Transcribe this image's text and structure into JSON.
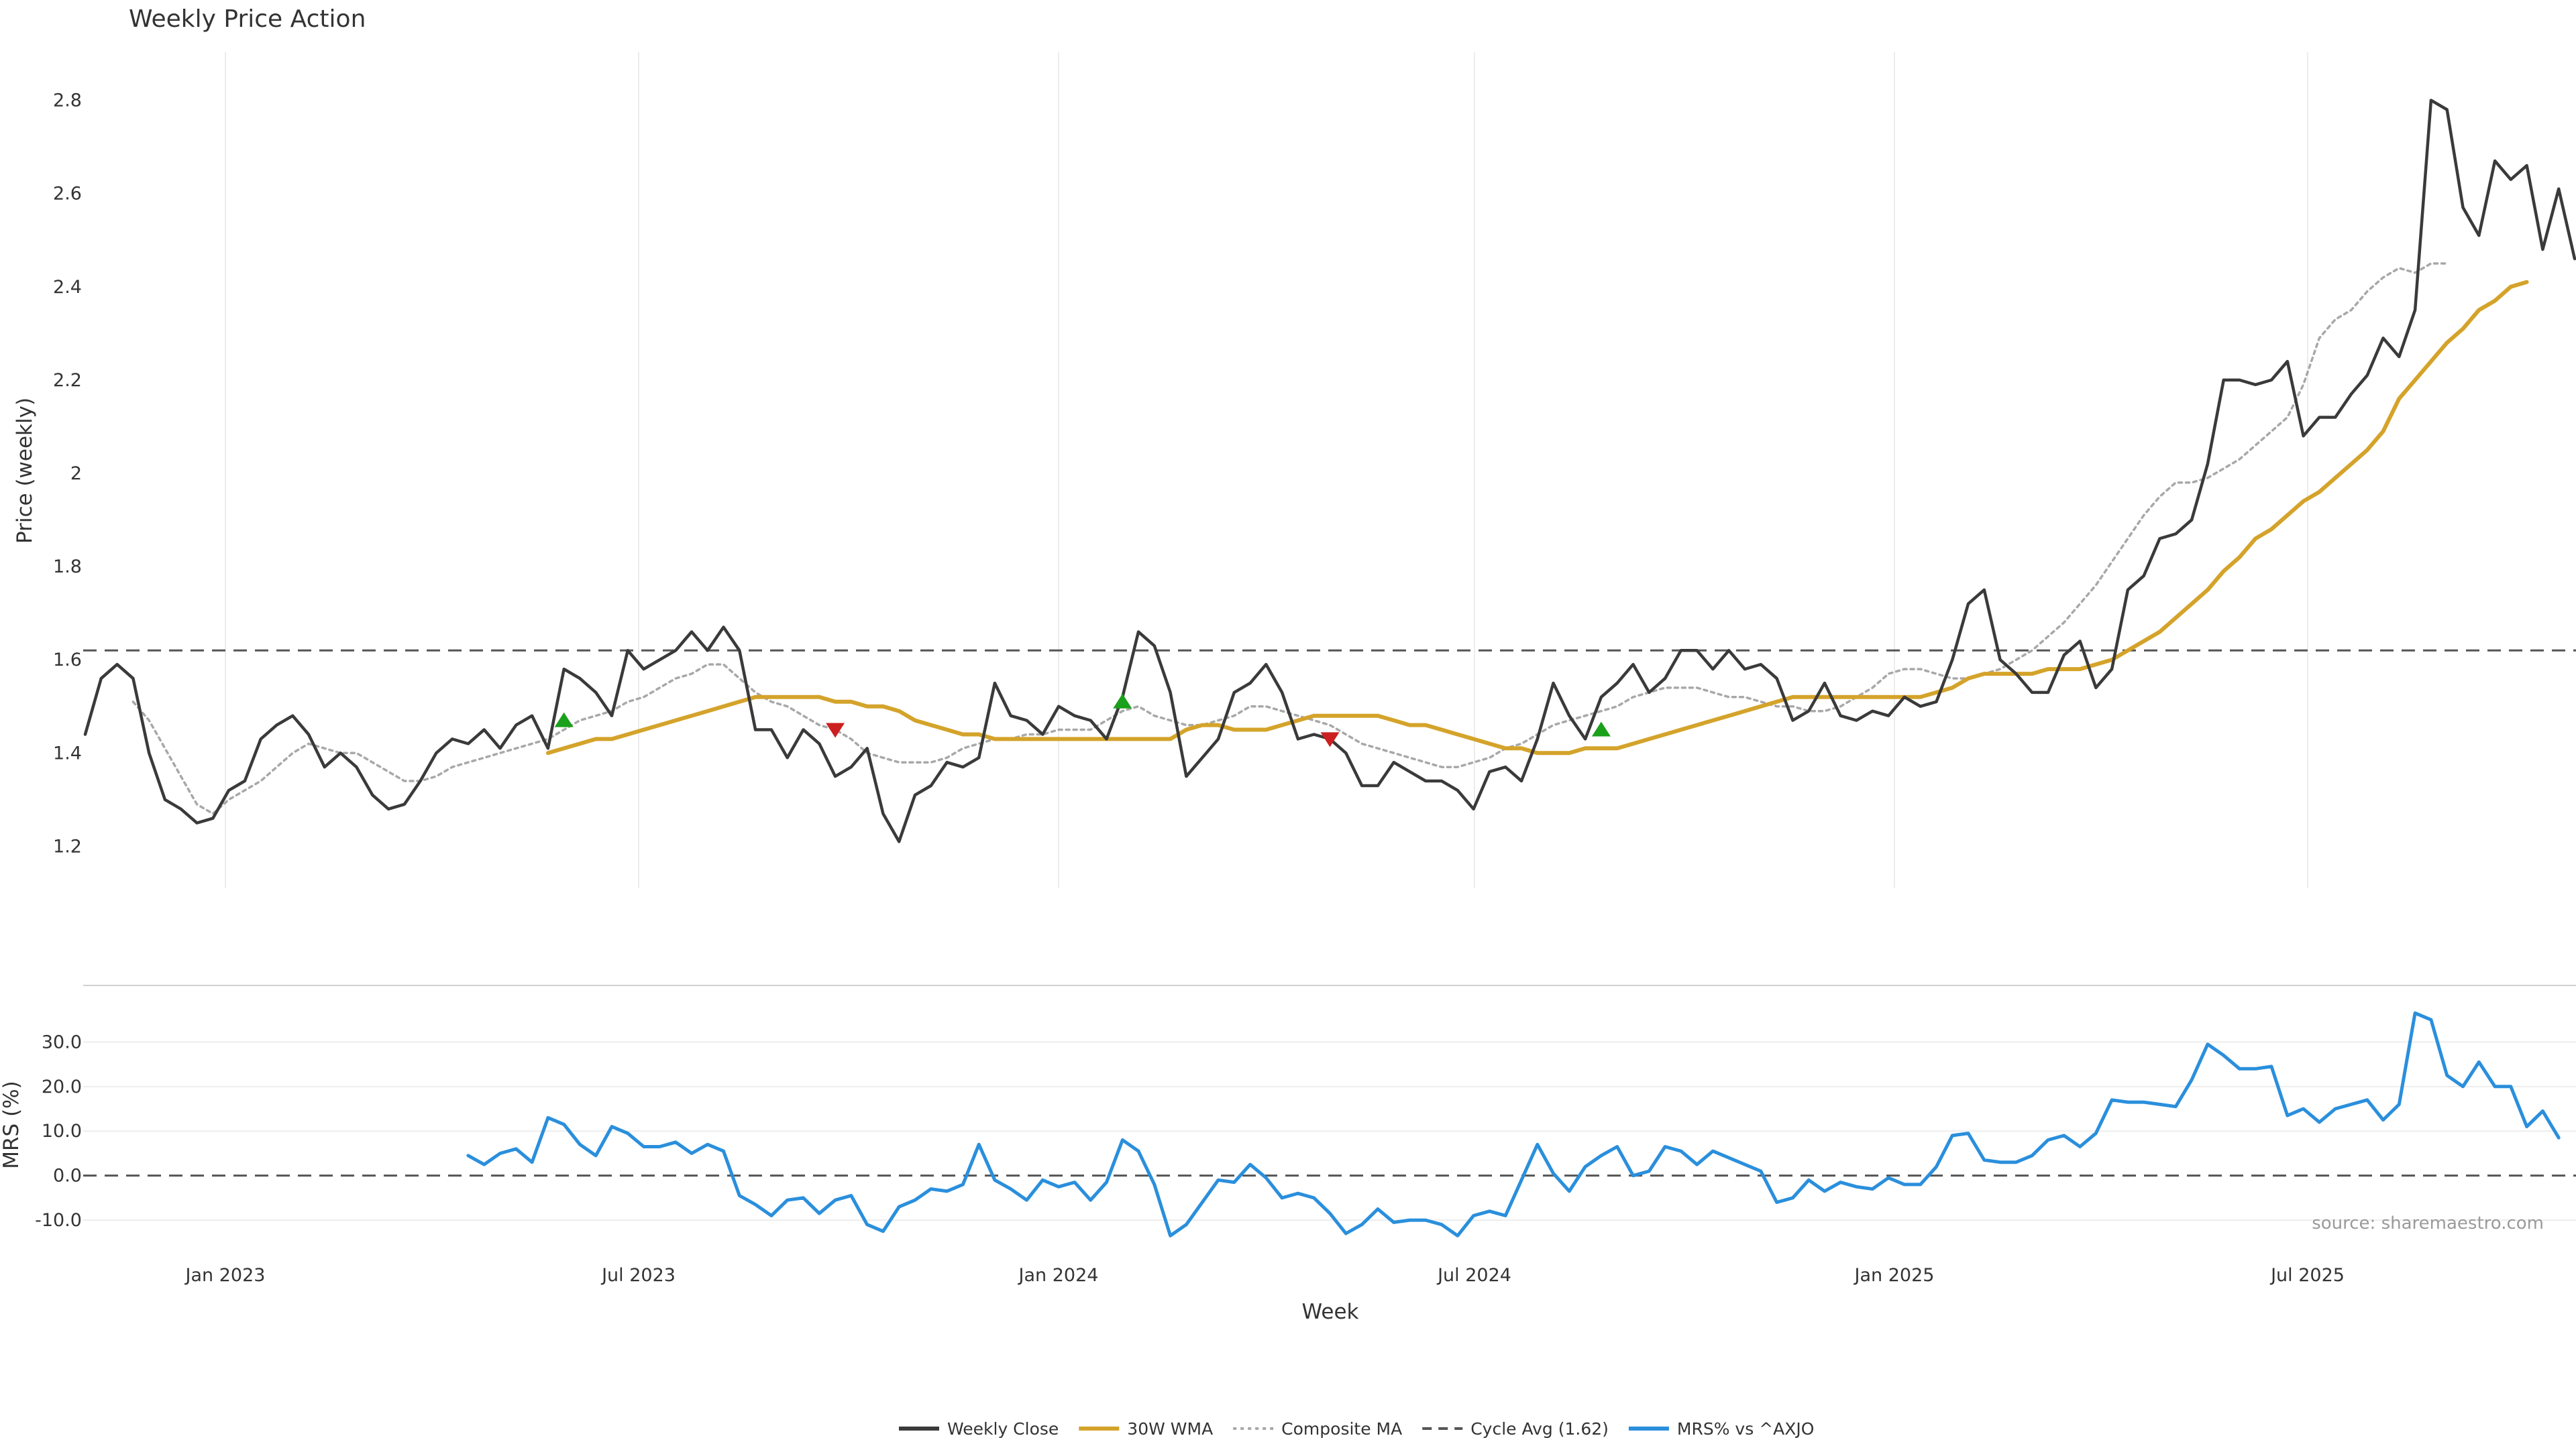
{
  "chart_data": [
    {
      "type": "line",
      "title": "Weekly Price Action",
      "ylabel": "Price (weekly)",
      "ylim": [
        1.11,
        2.9
      ],
      "yticks": [
        "1.2",
        "1.4",
        "1.6",
        "1.8",
        "2",
        "2.2",
        "2.4",
        "2.6",
        "2.8"
      ],
      "grid": "vertical",
      "reference_line": {
        "name": "Cycle Avg (1.62)",
        "value": 1.62,
        "style": "dashed"
      },
      "series": [
        {
          "name": "Weekly Close",
          "color": "#3a3a3a",
          "style": "solid",
          "values": [
            1.44,
            1.56,
            1.59,
            1.56,
            1.4,
            1.3,
            1.28,
            1.25,
            1.26,
            1.32,
            1.34,
            1.43,
            1.46,
            1.48,
            1.44,
            1.37,
            1.4,
            1.37,
            1.31,
            1.28,
            1.29,
            1.34,
            1.4,
            1.43,
            1.42,
            1.45,
            1.41,
            1.46,
            1.48,
            1.41,
            1.58,
            1.56,
            1.53,
            1.48,
            1.62,
            1.58,
            1.6,
            1.62,
            1.66,
            1.62,
            1.67,
            1.62,
            1.45,
            1.45,
            1.39,
            1.45,
            1.42,
            1.35,
            1.37,
            1.41,
            1.27,
            1.21,
            1.31,
            1.33,
            1.38,
            1.37,
            1.39,
            1.55,
            1.48,
            1.47,
            1.44,
            1.5,
            1.48,
            1.47,
            1.43,
            1.52,
            1.66,
            1.63,
            1.53,
            1.35,
            1.39,
            1.43,
            1.53,
            1.55,
            1.59,
            1.53,
            1.43,
            1.44,
            1.43,
            1.4,
            1.33,
            1.33,
            1.38,
            1.36,
            1.34,
            1.34,
            1.32,
            1.28,
            1.36,
            1.37,
            1.34,
            1.43,
            1.55,
            1.48,
            1.43,
            1.52,
            1.55,
            1.59,
            1.53,
            1.56,
            1.62,
            1.62,
            1.58,
            1.62,
            1.58,
            1.59,
            1.56,
            1.47,
            1.49,
            1.55,
            1.48,
            1.47,
            1.49,
            1.48,
            1.52,
            1.5,
            1.51,
            1.6,
            1.72,
            1.75,
            1.6,
            1.57,
            1.53,
            1.53,
            1.61,
            1.64,
            1.54,
            1.58,
            1.75,
            1.78,
            1.86,
            1.87,
            1.9,
            2.02,
            2.2,
            2.2,
            2.19,
            2.2,
            2.24,
            2.08,
            2.12,
            2.12,
            2.17,
            2.21,
            2.29,
            2.25,
            2.35,
            2.8,
            2.78,
            2.57,
            2.51,
            2.67,
            2.63,
            2.66,
            2.48,
            2.61,
            2.46
          ]
        },
        {
          "name": "30W WMA",
          "color": "#d4a32a",
          "style": "solid",
          "start_index": 29,
          "values": [
            1.4,
            1.41,
            1.42,
            1.43,
            1.43,
            1.44,
            1.45,
            1.46,
            1.47,
            1.48,
            1.49,
            1.5,
            1.51,
            1.52,
            1.52,
            1.52,
            1.52,
            1.52,
            1.51,
            1.51,
            1.5,
            1.5,
            1.49,
            1.47,
            1.46,
            1.45,
            1.44,
            1.44,
            1.43,
            1.43,
            1.43,
            1.43,
            1.43,
            1.43,
            1.43,
            1.43,
            1.43,
            1.43,
            1.43,
            1.43,
            1.45,
            1.46,
            1.46,
            1.45,
            1.45,
            1.45,
            1.46,
            1.47,
            1.48,
            1.48,
            1.48,
            1.48,
            1.48,
            1.47,
            1.46,
            1.46,
            1.45,
            1.44,
            1.43,
            1.42,
            1.41,
            1.41,
            1.4,
            1.4,
            1.4,
            1.41,
            1.41,
            1.41,
            1.42,
            1.43,
            1.44,
            1.45,
            1.46,
            1.47,
            1.48,
            1.49,
            1.5,
            1.51,
            1.52,
            1.52,
            1.52,
            1.52,
            1.52,
            1.52,
            1.52,
            1.52,
            1.52,
            1.53,
            1.54,
            1.56,
            1.57,
            1.57,
            1.57,
            1.57,
            1.58,
            1.58,
            1.58,
            1.59,
            1.6,
            1.62,
            1.64,
            1.66,
            1.69,
            1.72,
            1.75,
            1.79,
            1.82,
            1.86,
            1.88,
            1.91,
            1.94,
            1.96,
            1.99,
            2.02,
            2.05,
            2.09,
            2.16,
            2.2,
            2.24,
            2.28,
            2.31,
            2.35,
            2.37,
            2.4,
            2.41
          ]
        },
        {
          "name": "Composite MA",
          "color": "#a8a8a8",
          "style": "dotted",
          "start_index": 3,
          "values": [
            1.51,
            1.47,
            1.41,
            1.35,
            1.29,
            1.27,
            1.3,
            1.32,
            1.34,
            1.37,
            1.4,
            1.42,
            1.41,
            1.4,
            1.4,
            1.38,
            1.36,
            1.34,
            1.34,
            1.35,
            1.37,
            1.38,
            1.39,
            1.4,
            1.41,
            1.42,
            1.43,
            1.45,
            1.47,
            1.48,
            1.49,
            1.51,
            1.52,
            1.54,
            1.56,
            1.57,
            1.59,
            1.59,
            1.56,
            1.53,
            1.51,
            1.5,
            1.48,
            1.46,
            1.45,
            1.43,
            1.4,
            1.39,
            1.38,
            1.38,
            1.38,
            1.39,
            1.41,
            1.42,
            1.43,
            1.43,
            1.44,
            1.44,
            1.45,
            1.45,
            1.45,
            1.47,
            1.49,
            1.5,
            1.48,
            1.47,
            1.46,
            1.46,
            1.47,
            1.48,
            1.5,
            1.5,
            1.49,
            1.48,
            1.47,
            1.46,
            1.44,
            1.42,
            1.41,
            1.4,
            1.39,
            1.38,
            1.37,
            1.37,
            1.38,
            1.39,
            1.41,
            1.42,
            1.44,
            1.46,
            1.47,
            1.48,
            1.49,
            1.5,
            1.52,
            1.53,
            1.54,
            1.54,
            1.54,
            1.53,
            1.52,
            1.52,
            1.51,
            1.5,
            1.5,
            1.49,
            1.49,
            1.5,
            1.52,
            1.54,
            1.57,
            1.58,
            1.58,
            1.57,
            1.56,
            1.56,
            1.57,
            1.58,
            1.6,
            1.62,
            1.65,
            1.68,
            1.72,
            1.76,
            1.81,
            1.86,
            1.91,
            1.95,
            1.98,
            1.98,
            1.99,
            2.01,
            2.03,
            2.06,
            2.09,
            2.12,
            2.19,
            2.29,
            2.33,
            2.35,
            2.39,
            2.42,
            2.44,
            2.43,
            2.45,
            2.45
          ]
        }
      ],
      "signals": [
        {
          "type": "buy",
          "week_index": 30,
          "value": 1.47
        },
        {
          "type": "sell",
          "week_index": 47,
          "value": 1.45
        },
        {
          "type": "buy",
          "week_index": 65,
          "value": 1.51
        },
        {
          "type": "sell",
          "week_index": 78,
          "value": 1.43
        },
        {
          "type": "buy",
          "week_index": 95,
          "value": 1.45
        }
      ]
    },
    {
      "type": "line",
      "ylabel": "MRS (%)",
      "xlabel": "Week",
      "ylim": [
        -13,
        40
      ],
      "yticks": [
        "-10.0",
        "0.0",
        "10.0",
        "20.0",
        "30.0"
      ],
      "x_ticks": [
        "Jan 2023",
        "Jul 2023",
        "Jan 2024",
        "Jul 2024",
        "Jan 2025",
        "Jul 2025"
      ],
      "zero_line": {
        "value": 0,
        "style": "dashed"
      },
      "annotation": "source: sharemaestro.com",
      "series": [
        {
          "name": "MRS% vs ^AXJO",
          "color": "#2a8fdc",
          "style": "solid",
          "start_index": 24,
          "values": [
            4.5,
            2.5,
            5.0,
            6.0,
            3.0,
            13.0,
            11.5,
            7.0,
            4.5,
            11.0,
            9.5,
            6.5,
            6.5,
            7.5,
            5.0,
            7.0,
            5.5,
            -4.5,
            -6.5,
            -9.0,
            -5.5,
            -5.0,
            -8.5,
            -5.5,
            -4.5,
            -11.0,
            -12.5,
            -7.0,
            -5.5,
            -3.0,
            -3.5,
            -2.0,
            7.0,
            -1.0,
            -3.0,
            -5.5,
            -1.0,
            -2.5,
            -1.5,
            -5.5,
            -1.5,
            8.0,
            5.5,
            -2.0,
            -13.5,
            -11.0,
            -6.0,
            -1.0,
            -1.5,
            2.5,
            -0.5,
            -5.0,
            -4.0,
            -5.0,
            -8.5,
            -13.0,
            -11.0,
            -7.5,
            -10.5,
            -10.0,
            -10.0,
            -11.0,
            -13.5,
            -9.0,
            -8.0,
            -9.0,
            -1.0,
            7.0,
            0.5,
            -3.5,
            2.0,
            4.5,
            6.5,
            0.0,
            1.0,
            6.5,
            5.5,
            2.5,
            5.5,
            4.0,
            2.5,
            1.0,
            -6.0,
            -5.0,
            -1.0,
            -3.5,
            -1.5,
            -2.5,
            -3.0,
            -0.5,
            -2.0,
            -2.0,
            2.0,
            9.0,
            9.5,
            3.5,
            3.0,
            3.0,
            4.5,
            8.0,
            9.0,
            6.5,
            9.5,
            17.0,
            16.5,
            16.5,
            16.0,
            15.5,
            21.5,
            29.5,
            27.0,
            24.0,
            24.0,
            24.5,
            13.5,
            15.0,
            12.0,
            15.0,
            16.0,
            17.0,
            12.5,
            16.0,
            36.5,
            35.0,
            22.5,
            20.0,
            25.5,
            20.0,
            20.0,
            11.0,
            14.5,
            8.5
          ]
        }
      ]
    }
  ],
  "legend": [
    {
      "label": "Weekly Close",
      "color": "#3a3a3a",
      "style": "solid"
    },
    {
      "label": "30W WMA",
      "color": "#d4a32a",
      "style": "solid"
    },
    {
      "label": "Composite MA",
      "color": "#a8a8a8",
      "style": "dotted"
    },
    {
      "label": "Cycle Avg (1.62)",
      "color": "#555555",
      "style": "dashed"
    },
    {
      "label": "MRS% vs ^AXJO",
      "color": "#2a8fdc",
      "style": "solid"
    }
  ]
}
